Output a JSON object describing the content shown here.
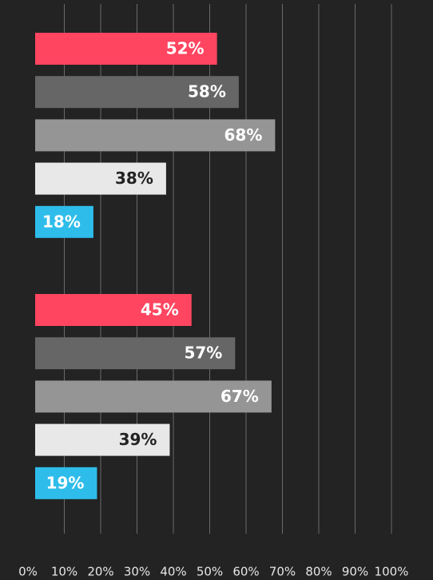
{
  "chart_data": {
    "type": "bar",
    "orientation": "horizontal",
    "categories": [
      null,
      null
    ],
    "series": [
      {
        "color": "#ff4560",
        "label_color": "#ffffff",
        "values": [
          52,
          45
        ],
        "value_labels": [
          "52%",
          "45%"
        ]
      },
      {
        "color": "#666666",
        "label_color": "#ffffff",
        "values": [
          58,
          57
        ],
        "value_labels": [
          "58%",
          "57%"
        ]
      },
      {
        "color": "#959595",
        "label_color": "#ffffff",
        "values": [
          68,
          67
        ],
        "value_labels": [
          "68%",
          "67%"
        ]
      },
      {
        "color": "#e8e8e8",
        "label_color": "#232323",
        "values": [
          38,
          39
        ],
        "value_labels": [
          "38%",
          "39%"
        ]
      },
      {
        "color": "#2ebdea",
        "label_color": "#ffffff",
        "values": [
          18,
          19
        ],
        "value_labels": [
          "18%",
          "19%"
        ]
      }
    ],
    "xlim": [
      0,
      100
    ],
    "xticks": [
      {
        "value": 0,
        "label": "0%"
      },
      {
        "value": 10,
        "label": "10%"
      },
      {
        "value": 20,
        "label": "20%"
      },
      {
        "value": 30,
        "label": "30%"
      },
      {
        "value": 40,
        "label": "40%"
      },
      {
        "value": 50,
        "label": "50%"
      },
      {
        "value": 60,
        "label": "60%"
      },
      {
        "value": 70,
        "label": "70%"
      },
      {
        "value": 80,
        "label": "80%"
      },
      {
        "value": 90,
        "label": "90%"
      },
      {
        "value": 100,
        "label": "100%"
      }
    ],
    "grid": true
  }
}
